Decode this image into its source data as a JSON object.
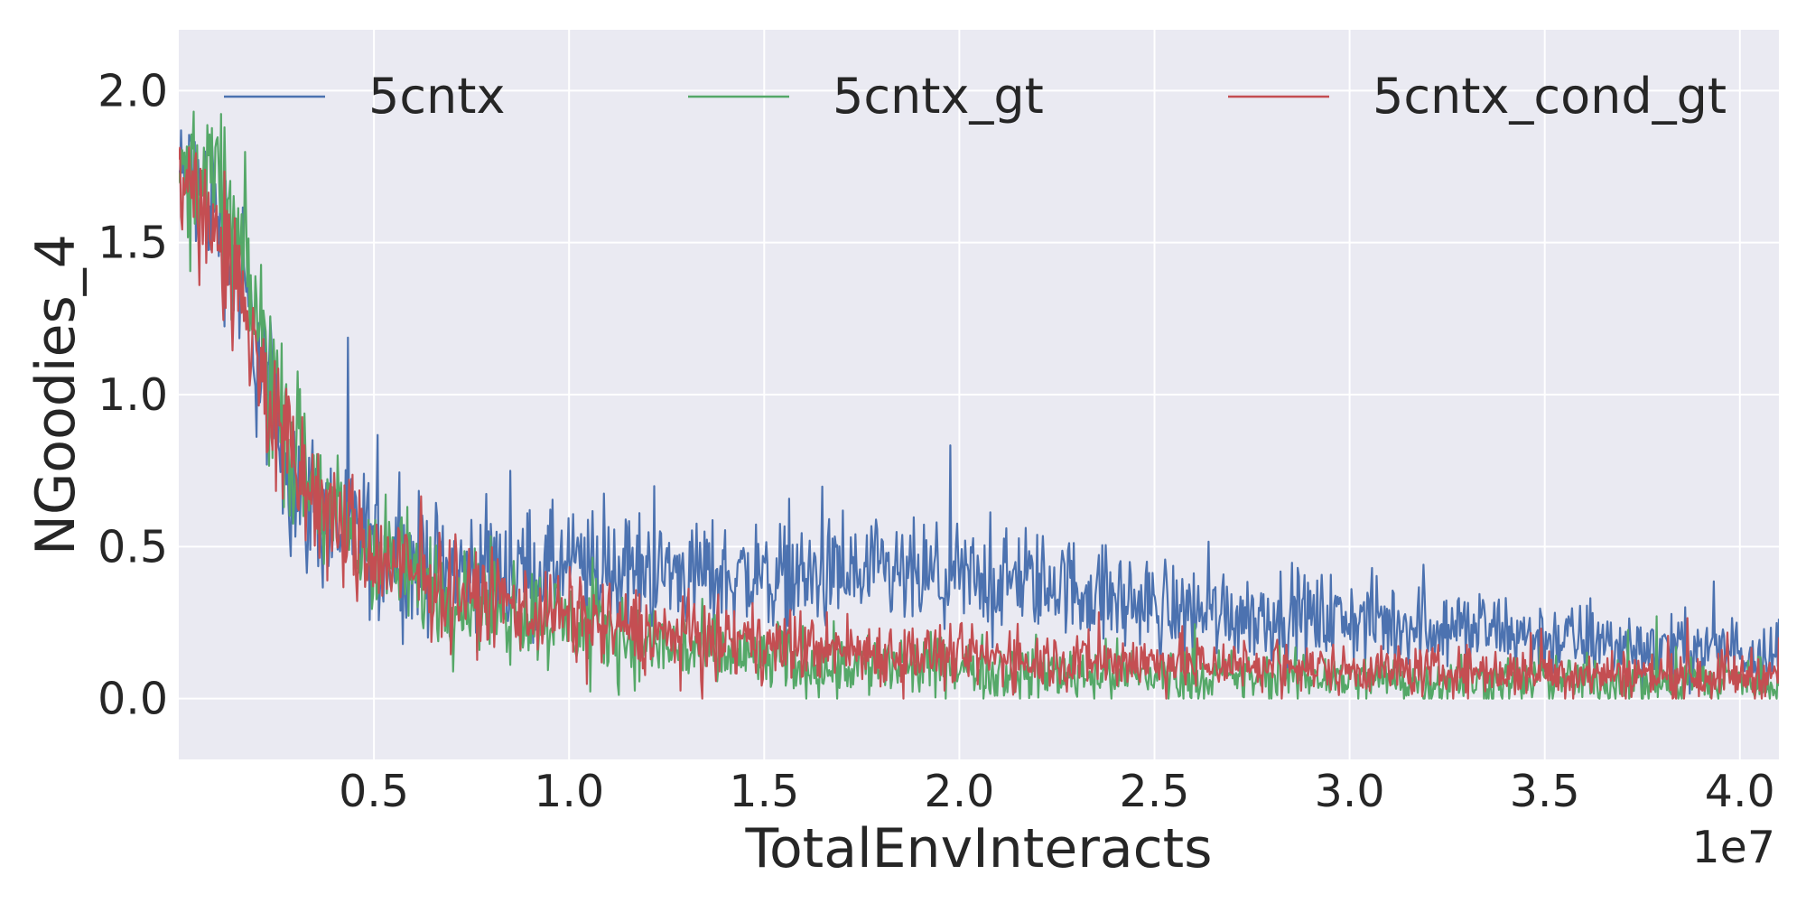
{
  "chart_data": {
    "type": "line",
    "xlabel": "TotalEnvInteracts",
    "ylabel": "NGoodies_4",
    "x_offset_label": "1e7",
    "xlim": [
      0.0,
      4.1
    ],
    "ylim": [
      -0.2,
      2.2
    ],
    "x_ticks": [
      0.5,
      1.0,
      1.5,
      2.0,
      2.5,
      3.0,
      3.5,
      4.0
    ],
    "x_tick_labels": [
      "0.5",
      "1.0",
      "1.5",
      "2.0",
      "2.5",
      "3.0",
      "3.5",
      "4.0"
    ],
    "y_ticks": [
      0.0,
      0.5,
      1.0,
      1.5,
      2.0
    ],
    "y_tick_labels": [
      "0.0",
      "0.5",
      "1.0",
      "1.5",
      "2.0"
    ],
    "grid": true,
    "legend_position": "top",
    "background": "#eaeaf2",
    "x_unit": "1e7",
    "series": [
      {
        "name": "5cntx",
        "color": "#4c72b0",
        "x": [
          0.0,
          0.05,
          0.1,
          0.15,
          0.2,
          0.25,
          0.3,
          0.35,
          0.4,
          0.5,
          0.6,
          0.75,
          1.0,
          1.25,
          1.5,
          1.75,
          2.0,
          2.25,
          2.5,
          2.75,
          3.0,
          3.25,
          3.5,
          3.75,
          4.1
        ],
        "mean": [
          1.72,
          1.7,
          1.6,
          1.4,
          1.15,
          0.9,
          0.72,
          0.62,
          0.56,
          0.5,
          0.45,
          0.42,
          0.43,
          0.42,
          0.4,
          0.4,
          0.39,
          0.38,
          0.3,
          0.28,
          0.26,
          0.24,
          0.2,
          0.17,
          0.16
        ],
        "noise": [
          0.12,
          0.14,
          0.16,
          0.18,
          0.18,
          0.17,
          0.16,
          0.15,
          0.15,
          0.14,
          0.13,
          0.12,
          0.12,
          0.11,
          0.11,
          0.11,
          0.11,
          0.1,
          0.1,
          0.09,
          0.09,
          0.08,
          0.08,
          0.07,
          0.07
        ]
      },
      {
        "name": "5cntx_gt",
        "color": "#55a868",
        "x": [
          0.0,
          0.05,
          0.1,
          0.15,
          0.2,
          0.25,
          0.3,
          0.35,
          0.4,
          0.5,
          0.6,
          0.75,
          1.0,
          1.25,
          1.5,
          1.75,
          2.0,
          2.25,
          2.5,
          2.75,
          3.0,
          3.25,
          3.5,
          3.75,
          4.1
        ],
        "mean": [
          1.72,
          1.75,
          1.7,
          1.5,
          1.25,
          1.0,
          0.8,
          0.68,
          0.58,
          0.47,
          0.4,
          0.33,
          0.25,
          0.17,
          0.13,
          0.11,
          0.1,
          0.09,
          0.08,
          0.07,
          0.07,
          0.06,
          0.06,
          0.06,
          0.06
        ],
        "noise": [
          0.12,
          0.14,
          0.16,
          0.18,
          0.18,
          0.17,
          0.16,
          0.15,
          0.14,
          0.13,
          0.12,
          0.11,
          0.1,
          0.08,
          0.07,
          0.07,
          0.06,
          0.06,
          0.06,
          0.05,
          0.05,
          0.05,
          0.05,
          0.05,
          0.05
        ]
      },
      {
        "name": "5cntx_cond_gt",
        "color": "#c44e52",
        "x": [
          0.0,
          0.05,
          0.1,
          0.15,
          0.2,
          0.25,
          0.3,
          0.35,
          0.4,
          0.5,
          0.6,
          0.75,
          1.0,
          1.25,
          1.5,
          1.75,
          2.0,
          2.25,
          2.5,
          2.75,
          3.0,
          3.25,
          3.5,
          3.75,
          4.1
        ],
        "mean": [
          1.7,
          1.65,
          1.55,
          1.35,
          1.12,
          0.9,
          0.75,
          0.65,
          0.57,
          0.47,
          0.4,
          0.34,
          0.27,
          0.21,
          0.18,
          0.16,
          0.14,
          0.13,
          0.12,
          0.11,
          0.1,
          0.09,
          0.09,
          0.08,
          0.08
        ],
        "noise": [
          0.1,
          0.12,
          0.14,
          0.16,
          0.16,
          0.15,
          0.14,
          0.13,
          0.13,
          0.12,
          0.11,
          0.1,
          0.09,
          0.08,
          0.07,
          0.07,
          0.06,
          0.06,
          0.06,
          0.05,
          0.05,
          0.05,
          0.05,
          0.05,
          0.05
        ]
      }
    ]
  }
}
